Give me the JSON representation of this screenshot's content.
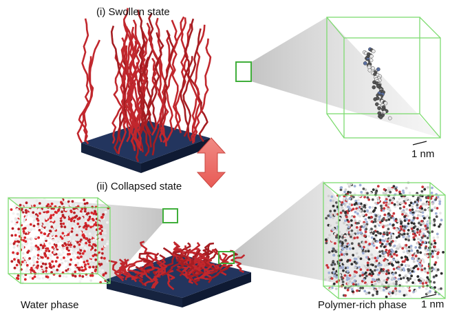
{
  "top": {
    "label": "(i) Swollen state",
    "scale_bar": "1 nm"
  },
  "bottom": {
    "label": "(ii) Collapsed state",
    "left_caption": "Water phase",
    "right_caption": "Polymer-rich phase",
    "scale_bar": "1 nm"
  }
}
